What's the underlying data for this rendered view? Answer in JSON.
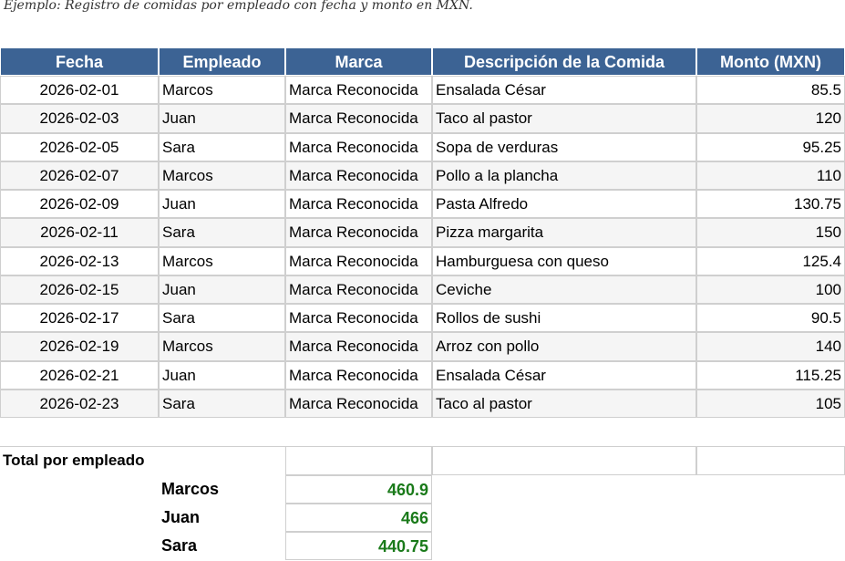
{
  "note": "Ejemplo: Registro de comidas por empleado con fecha y monto en MXN.",
  "table": {
    "headers": [
      "Fecha",
      "Empleado",
      "Marca",
      "Descripción de la Comida",
      "Monto (MXN)"
    ],
    "rows": [
      [
        "2026-02-01",
        "Marcos",
        "Marca Reconocida",
        "Ensalada César",
        85.5
      ],
      [
        "2026-02-03",
        "Juan",
        "Marca Reconocida",
        "Taco al pastor",
        120
      ],
      [
        "2026-02-05",
        "Sara",
        "Marca Reconocida",
        "Sopa de verduras",
        95.25
      ],
      [
        "2026-02-07",
        "Marcos",
        "Marca Reconocida",
        "Pollo a la plancha",
        110
      ],
      [
        "2026-02-09",
        "Juan",
        "Marca Reconocida",
        "Pasta Alfredo",
        130.75
      ],
      [
        "2026-02-11",
        "Sara",
        "Marca Reconocida",
        "Pizza margarita",
        150
      ],
      [
        "2026-02-13",
        "Marcos",
        "Marca Reconocida",
        "Hamburguesa con queso",
        125.4
      ],
      [
        "2026-02-15",
        "Juan",
        "Marca Reconocida",
        "Ceviche",
        100
      ],
      [
        "2026-02-17",
        "Sara",
        "Marca Reconocida",
        "Rollos de sushi",
        90.5
      ],
      [
        "2026-02-19",
        "Marcos",
        "Marca Reconocida",
        "Arroz con pollo",
        140
      ],
      [
        "2026-02-21",
        "Juan",
        "Marca Reconocida",
        "Ensalada César",
        115.25
      ],
      [
        "2026-02-23",
        "Sara",
        "Marca Reconocida",
        "Taco al pastor",
        105
      ]
    ]
  },
  "totals": {
    "label": "Total por empleado",
    "rows": [
      {
        "name": "Marcos",
        "value": 460.9
      },
      {
        "name": "Juan",
        "value": 466
      },
      {
        "name": "Sara",
        "value": 440.75
      }
    ]
  }
}
